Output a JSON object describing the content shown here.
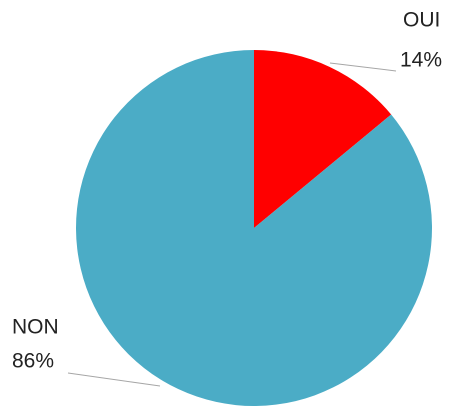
{
  "chart_data": {
    "type": "pie",
    "categories": [
      "OUI",
      "NON"
    ],
    "values": [
      14,
      86
    ],
    "value_labels": [
      "14%",
      "86%"
    ],
    "colors": [
      "#ff0000",
      "#4bacc6"
    ]
  }
}
